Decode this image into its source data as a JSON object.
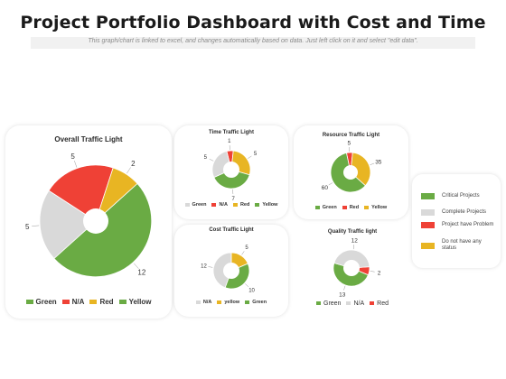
{
  "page": {
    "title": "Project Portfolio Dashboard with Cost and Time",
    "subtitle": "This graph/chart is linked to excel, and changes automatically based on data. Just left click on it and select \"edit data\"."
  },
  "colors": {
    "green": "#6aab44",
    "gray": "#d9d9d9",
    "red": "#ef4136",
    "yellow": "#e8b523"
  },
  "legend_box": {
    "items": [
      {
        "label": "Critical Projects",
        "color": "#6aab44"
      },
      {
        "label": "Complete Projects",
        "color": "#d9d9d9"
      },
      {
        "label": "Project have Problem",
        "color": "#ef4136"
      },
      {
        "label": "Do not have any status",
        "color": "#e8b523"
      }
    ]
  },
  "chart_data": [
    {
      "type": "pie",
      "title": "Overall Traffic Light",
      "slices": [
        {
          "label": "N/A",
          "value": 5,
          "color": "#d9d9d9"
        },
        {
          "label": "Red",
          "value": 5,
          "color": "#ef4136"
        },
        {
          "label": "Yellow",
          "value": 2,
          "color": "#e8b523"
        },
        {
          "label": "Green",
          "value": 12,
          "color": "#6aab44"
        }
      ],
      "legend": [
        {
          "label": "Green",
          "color": "#6aab44"
        },
        {
          "label": "N/A",
          "color": "#ef4136"
        },
        {
          "label": "Red",
          "color": "#e8b523"
        },
        {
          "label": "Yellow",
          "color": "#6aab44"
        }
      ]
    },
    {
      "type": "pie",
      "title": "Time Traffic Light",
      "slices": [
        {
          "label": "Red",
          "value": 1,
          "color": "#ef4136"
        },
        {
          "label": "Yellow",
          "value": 5,
          "color": "#e8b523"
        },
        {
          "label": "Green",
          "value": 7,
          "color": "#6aab44"
        },
        {
          "label": "N/A",
          "value": 5,
          "color": "#d9d9d9"
        }
      ],
      "legend": [
        {
          "label": "Green",
          "color": "#d9d9d9"
        },
        {
          "label": "N/A",
          "color": "#ef4136"
        },
        {
          "label": "Red",
          "color": "#e8b523"
        },
        {
          "label": "Yellow",
          "color": "#6aab44"
        }
      ]
    },
    {
      "type": "pie",
      "title": "Resource Traffic Light",
      "slices": [
        {
          "label": "Red",
          "value": 5,
          "color": "#ef4136"
        },
        {
          "label": "Yellow",
          "value": 35,
          "color": "#e8b523"
        },
        {
          "label": "Green",
          "value": 60,
          "color": "#6aab44"
        }
      ],
      "legend": [
        {
          "label": "Green",
          "color": "#6aab44"
        },
        {
          "label": "Red",
          "color": "#ef4136"
        },
        {
          "label": "Yellow",
          "color": "#e8b523"
        }
      ]
    },
    {
      "type": "pie",
      "title": "Cost Traffic Light",
      "slices": [
        {
          "label": "yellow",
          "value": 5,
          "color": "#e8b523"
        },
        {
          "label": "Green",
          "value": 10,
          "color": "#6aab44"
        },
        {
          "label": "N/A",
          "value": 12,
          "color": "#d9d9d9"
        }
      ],
      "legend": [
        {
          "label": "N/A",
          "color": "#d9d9d9"
        },
        {
          "label": "yellow",
          "color": "#e8b523"
        },
        {
          "label": "Green",
          "color": "#6aab44"
        }
      ]
    },
    {
      "type": "pie",
      "title": "Quality Traffic light",
      "slices": [
        {
          "label": "Red",
          "value": 2,
          "color": "#ef4136"
        },
        {
          "label": "Green",
          "value": 13,
          "color": "#6aab44"
        },
        {
          "label": "N/A",
          "value": 12,
          "color": "#d9d9d9"
        }
      ],
      "legend": [
        {
          "label": "Green",
          "color": "#6aab44"
        },
        {
          "label": "N/A",
          "color": "#d9d9d9"
        },
        {
          "label": "Red",
          "color": "#ef4136"
        }
      ]
    }
  ]
}
